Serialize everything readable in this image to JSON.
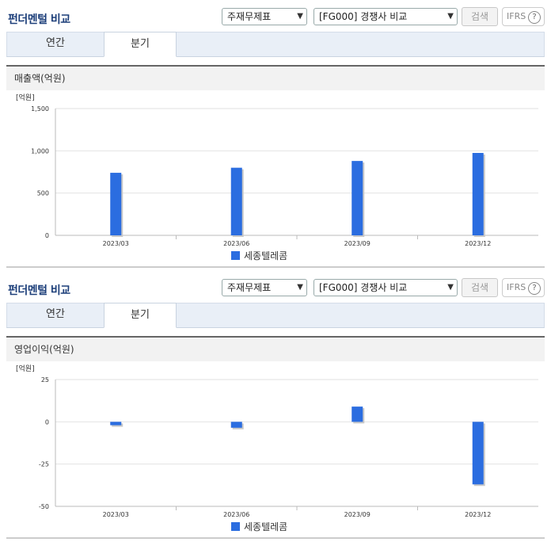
{
  "panels": [
    {
      "title": "펀더멘털 비교",
      "select1": "주재무제표",
      "select2": "[FG000] 경쟁사 비교",
      "search_button": "검색",
      "ifrs_button": "IFRS",
      "help_icon": "?",
      "tabs": [
        "연간",
        "분기"
      ],
      "active_tab": "분기",
      "section_label": "매출액(억원)"
    },
    {
      "title": "펀더멘털 비교",
      "select1": "주재무제표",
      "select2": "[FG000] 경쟁사 비교",
      "search_button": "검색",
      "ifrs_button": "IFRS",
      "help_icon": "?",
      "tabs": [
        "연간",
        "분기"
      ],
      "active_tab": "분기",
      "section_label": "영업이익(억원)"
    }
  ],
  "chart_data": [
    {
      "type": "bar",
      "unit_label": "[억원]",
      "categories": [
        "2023/03",
        "2023/06",
        "2023/09",
        "2023/12"
      ],
      "series": [
        {
          "name": "세종텔레콤",
          "values": [
            740,
            800,
            880,
            975
          ],
          "color": "#2b6de0"
        }
      ],
      "yticks": [
        "1,500",
        "1,000",
        "500",
        "0"
      ],
      "ylim": [
        0,
        1500
      ],
      "grid": true,
      "legend": "bottom-center"
    },
    {
      "type": "bar",
      "unit_label": "[억원]",
      "categories": [
        "2023/03",
        "2023/06",
        "2023/09",
        "2023/12"
      ],
      "series": [
        {
          "name": "세종텔레콤",
          "values": [
            -2,
            -3.5,
            9,
            -37
          ],
          "color": "#2b6de0"
        }
      ],
      "yticks": [
        "25",
        "0",
        "-25",
        "-50"
      ],
      "ylim": [
        -50,
        25
      ],
      "grid": true,
      "legend": "bottom-center"
    }
  ]
}
